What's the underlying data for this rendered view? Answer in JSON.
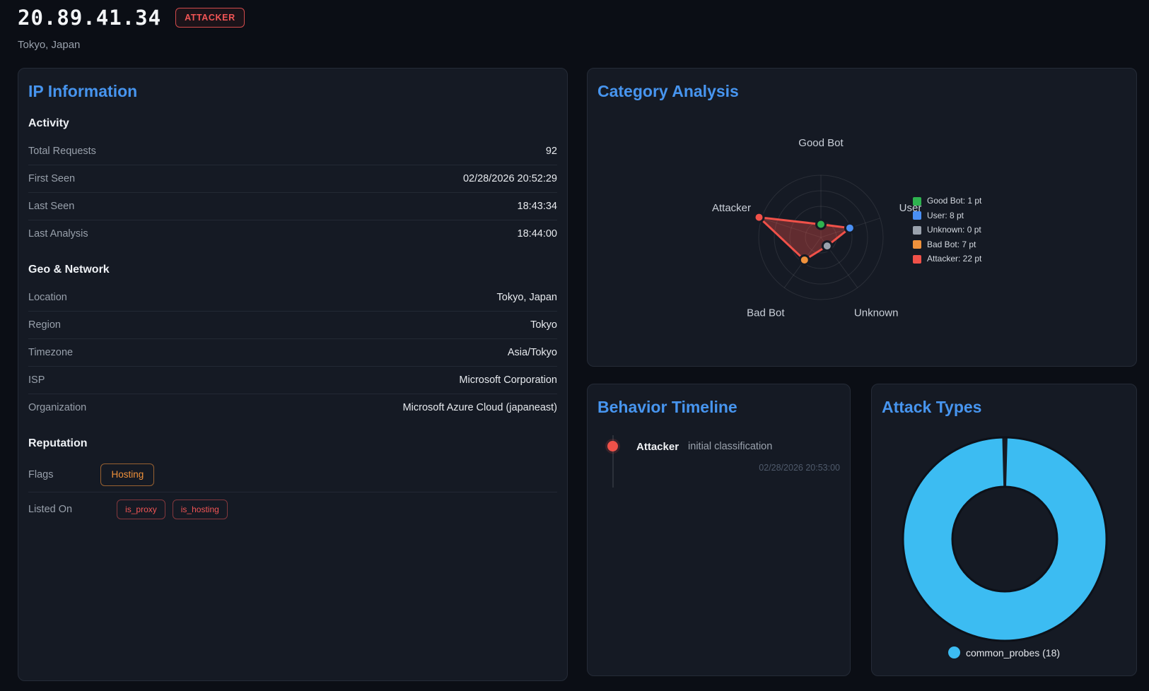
{
  "header": {
    "ip": "20.89.41.34",
    "badge": "ATTACKER",
    "location": "Tokyo, Japan"
  },
  "ip_info": {
    "title": "IP Information",
    "sections": [
      {
        "heading": "Activity",
        "rows": [
          {
            "label": "Total Requests",
            "value": "92"
          },
          {
            "label": "First Seen",
            "value": "02/28/2026 20:52:29"
          },
          {
            "label": "Last Seen",
            "value": "18:43:34"
          },
          {
            "label": "Last Analysis",
            "value": "18:44:00"
          }
        ]
      },
      {
        "heading": "Geo & Network",
        "rows": [
          {
            "label": "Location",
            "value": "Tokyo, Japan"
          },
          {
            "label": "Region",
            "value": "Tokyo"
          },
          {
            "label": "Timezone",
            "value": "Asia/Tokyo"
          },
          {
            "label": "ISP",
            "value": "Microsoft Corporation"
          },
          {
            "label": "Organization",
            "value": "Microsoft Azure Cloud (japaneast)"
          }
        ]
      },
      {
        "heading": "Reputation",
        "rows": [
          {
            "label": "Flags",
            "badges": [
              {
                "text": "Hosting",
                "style": "orange"
              }
            ]
          },
          {
            "label": "Listed On",
            "badges": [
              {
                "text": "is_proxy",
                "style": "red"
              },
              {
                "text": "is_hosting",
                "style": "red"
              }
            ]
          }
        ]
      }
    ]
  },
  "category_analysis": {
    "title": "Category Analysis",
    "legend": [
      {
        "label": "Good Bot: 1 pt",
        "color": "#2eb34f"
      },
      {
        "label": "User: 8 pt",
        "color": "#4a90f5"
      },
      {
        "label": "Unknown: 0 pt",
        "color": "#9aa2ad"
      },
      {
        "label": "Bad Bot: 7 pt",
        "color": "#f0923c"
      },
      {
        "label": "Attacker: 22 pt",
        "color": "#f05149"
      }
    ]
  },
  "behavior_timeline": {
    "title": "Behavior Timeline",
    "events": [
      {
        "category": "Attacker",
        "description": "initial classification",
        "timestamp": "02/28/2026 20:53:00",
        "color": "#f05149"
      }
    ]
  },
  "attack_types": {
    "title": "Attack Types",
    "legend": [
      {
        "label": "common_probes (18)",
        "color": "#3cbcf2"
      }
    ]
  },
  "chart_data": [
    {
      "type": "radar",
      "title": "Category Analysis",
      "categories": [
        "Good Bot",
        "User",
        "Unknown",
        "Bad Bot",
        "Attacker"
      ],
      "values": [
        1,
        8,
        0,
        7,
        22
      ],
      "unit": "pt",
      "max": 22,
      "rings": 4,
      "grid": true,
      "legend_position": "right",
      "series_color": "#f05149",
      "fill_color": "rgba(240,81,73,0.35)",
      "point_colors": [
        "#2eb34f",
        "#4a90f5",
        "#9aa2ad",
        "#f0923c",
        "#f05149"
      ],
      "label_color": "#c9cfd8",
      "grid_color": "rgba(255,255,255,0.09)"
    },
    {
      "type": "pie",
      "subtype": "doughnut",
      "title": "Attack Types",
      "categories": [
        "common_probes"
      ],
      "values": [
        18
      ],
      "colors": [
        "#3cbcf2"
      ],
      "cutout_ratio": 0.51,
      "legend_position": "bottom"
    }
  ]
}
